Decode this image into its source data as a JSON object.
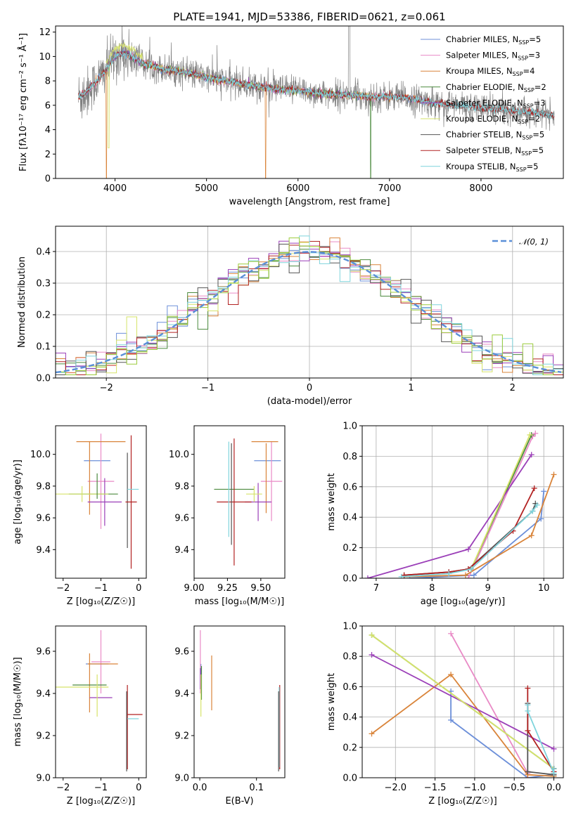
{
  "colors": {
    "chabrier_miles": "#6c8fd9",
    "salpeter_miles": "#e98ac6",
    "kroupa_miles": "#d9843a",
    "chabrier_elodie": "#4b8a3e",
    "salpeter_elodie": "#9b3fb8",
    "kroupa_elodie": "#d6e36a",
    "chabrier_stelib": "#555555",
    "salpeter_stelib": "#b22222",
    "kroupa_stelib": "#7fd4dc",
    "data": "#808080",
    "normal": "#5a8fd8",
    "green": "#9ccc3c"
  },
  "chart_data": [
    {
      "id": "spectrum",
      "type": "line",
      "title": "PLATE=1941, MJD=53386, FIBERID=0621, z=0.061",
      "xlabel": "wavelength [Angstrom, rest frame]",
      "ylabel": "Flux [fλ10⁻¹⁷ erg cm⁻² s⁻¹ Å⁻¹]",
      "xlim": [
        3350,
        8900
      ],
      "ylim": [
        0,
        12.5
      ],
      "xticks": [
        4000,
        5000,
        6000,
        7000,
        8000
      ],
      "yticks": [
        0,
        2,
        4,
        6,
        8,
        10,
        12
      ],
      "continuum": {
        "x": [
          3600,
          3700,
          3800,
          3900,
          3950,
          4000,
          4100,
          4200,
          4300,
          4400,
          4500,
          4700,
          5000,
          5200,
          5500,
          5800,
          6000,
          6300,
          6600,
          6800,
          7000,
          7200,
          7400,
          7500,
          7700,
          8000,
          8300,
          8600,
          8800
        ],
        "y": [
          6.6,
          7.2,
          8.0,
          8.9,
          9.5,
          10.0,
          10.3,
          9.9,
          9.4,
          9.3,
          9.0,
          8.8,
          8.3,
          8.0,
          7.6,
          7.3,
          7.2,
          6.9,
          6.8,
          6.7,
          6.7,
          6.6,
          6.3,
          6.2,
          6.0,
          5.8,
          5.6,
          5.4,
          5.2
        ]
      },
      "legend": [
        {
          "main": "Chabrier MILES, N",
          "sub": "SSP",
          "tail": "=5"
        },
        {
          "main": "Salpeter MILES, N",
          "sub": "SSP",
          "tail": "=3"
        },
        {
          "main": "Kroupa MILES, N",
          "sub": "SSP",
          "tail": "=4"
        },
        {
          "main": "Chabrier ELODIE, N",
          "sub": "SSP",
          "tail": "=2"
        },
        {
          "main": "Salpeter ELODIE, N",
          "sub": "SSP",
          "tail": "=3"
        },
        {
          "main": "Kroupa ELODIE, N",
          "sub": "SSP",
          "tail": "=2"
        },
        {
          "main": "Chabrier STELIB, N",
          "sub": "SSP",
          "tail": "=5"
        },
        {
          "main": "Salpeter STELIB, N",
          "sub": "SSP",
          "tail": "=5"
        },
        {
          "main": "Kroupa STELIB, N",
          "sub": "SSP",
          "tail": "=5"
        }
      ],
      "legend_placement": "upper-right"
    },
    {
      "id": "residuals",
      "type": "histogram",
      "xlabel": "(data-model)/error",
      "ylabel": "Normed distribution",
      "xlim": [
        -2.5,
        2.5
      ],
      "ylim": [
        0,
        0.48
      ],
      "xticks": [
        -2,
        -1,
        0,
        1,
        2
      ],
      "yticks": [
        0.0,
        0.1,
        0.2,
        0.3,
        0.4
      ],
      "bin_width": 0.1,
      "legend": "𝒩(0, 1)",
      "legend_placement": "upper-right",
      "grid": true
    },
    {
      "id": "age_vs_Z",
      "type": "errorbar",
      "xlabel": "Z [log₁₀(Z/Z☉)]",
      "ylabel": "age  [log₁₀(age/yr)]",
      "xlim": [
        -2.2,
        0.2
      ],
      "ylim": [
        9.22,
        10.18
      ],
      "xticks": [
        -2,
        -1,
        0
      ],
      "yticks": [
        9.4,
        9.6,
        9.8,
        10.0
      ],
      "points": [
        {
          "s": "chabrier_miles",
          "x": -1.1,
          "xe": 0.35,
          "y": 9.96,
          "ye": 0.0
        },
        {
          "s": "salpeter_miles",
          "x": -1.0,
          "xe": 0.35,
          "y": 9.83,
          "ye": 0.3
        },
        {
          "s": "kroupa_miles",
          "x": -1.0,
          "xe": 0.65,
          "y": 10.08,
          "ye": 0.0
        },
        {
          "s": "kroupa_miles",
          "x": -1.3,
          "xe": 0.0,
          "y": 9.85,
          "ye": 0.23
        },
        {
          "s": "chabrier_elodie",
          "x": -1.2,
          "xe": 0.65,
          "y": 9.75,
          "ye": 0.0
        },
        {
          "s": "salpeter_elodie",
          "x": -0.9,
          "xe": 0.45,
          "y": 9.7,
          "ye": 0.15
        },
        {
          "s": "kroupa_elodie",
          "x": -1.5,
          "xe": 0.7,
          "y": 9.75,
          "ye": 0.05
        },
        {
          "s": "chabrier_stelib",
          "x": -0.3,
          "xe": 0.0,
          "y": 9.71,
          "ye": 0.3
        },
        {
          "s": "salpeter_stelib",
          "x": -0.2,
          "xe": 0.15,
          "y": 9.7,
          "ye": 0.42
        },
        {
          "s": "kroupa_stelib",
          "x": -0.15,
          "xe": 0.15,
          "y": 9.78,
          "ye": 0.0
        },
        {
          "s": "chabrier_elodie",
          "x": -1.1,
          "xe": 0.0,
          "y": 9.8,
          "ye": 0.08
        }
      ]
    },
    {
      "id": "age_vs_mass",
      "type": "errorbar",
      "xlabel": "mass [log₁₀(M/M☉)]",
      "ylabel": "",
      "xlim": [
        9.0,
        9.68
      ],
      "ylim": [
        9.22,
        10.18
      ],
      "xticks": [
        9.0,
        9.25,
        9.5
      ],
      "xticklabels": [
        "9.00",
        "9.25",
        "9.50"
      ],
      "yticks": [
        9.4,
        9.6,
        9.8,
        10.0
      ],
      "points": [
        {
          "s": "chabrier_miles",
          "x": 9.55,
          "xe": 0.1,
          "y": 9.96,
          "ye": 0.0
        },
        {
          "s": "salpeter_miles",
          "x": 9.58,
          "xe": 0.08,
          "y": 9.83,
          "ye": 0.25
        },
        {
          "s": "kroupa_miles",
          "x": 9.53,
          "xe": 0.1,
          "y": 10.08,
          "ye": 0.0
        },
        {
          "s": "kroupa_miles",
          "x": 9.54,
          "xe": 0.0,
          "y": 9.85,
          "ye": 0.22
        },
        {
          "s": "chabrier_elodie",
          "x": 9.3,
          "xe": 0.15,
          "y": 9.78,
          "ye": 0.0
        },
        {
          "s": "salpeter_elodie",
          "x": 9.48,
          "xe": 0.1,
          "y": 9.7,
          "ye": 0.12
        },
        {
          "s": "kroupa_elodie",
          "x": 9.45,
          "xe": 0.06,
          "y": 9.75,
          "ye": 0.05
        },
        {
          "s": "salpeter_stelib",
          "x": 9.3,
          "xe": 0.13,
          "y": 9.7,
          "ye": 0.4
        },
        {
          "s": "kroupa_stelib",
          "x": 9.26,
          "xe": 0.0,
          "y": 9.78,
          "ye": 0.3
        },
        {
          "s": "chabrier_stelib",
          "x": 9.28,
          "xe": 0.0,
          "y": 9.75,
          "ye": 0.32
        }
      ]
    },
    {
      "id": "weight_vs_age",
      "type": "line",
      "xlabel": "age  [log₁₀(age/yr)]",
      "ylabel": "mass weight",
      "xlim": [
        6.75,
        10.35
      ],
      "ylim": [
        0,
        1.0
      ],
      "xticks": [
        7,
        8,
        9,
        10
      ],
      "yticks": [
        0.0,
        0.2,
        0.4,
        0.6,
        0.8,
        1.0
      ],
      "grid": true,
      "series": [
        {
          "s": "chabrier_miles",
          "x": [
            7.6,
            8.75,
            9.95,
            10.0
          ],
          "y": [
            0.0,
            0.02,
            0.39,
            0.57
          ]
        },
        {
          "s": "salpeter_miles",
          "x": [
            8.65,
            9.8,
            9.85
          ],
          "y": [
            0.0,
            0.93,
            0.95
          ]
        },
        {
          "s": "kroupa_miles",
          "x": [
            7.5,
            8.6,
            9.78,
            10.18
          ],
          "y": [
            0.01,
            0.02,
            0.28,
            0.68
          ]
        },
        {
          "s": "chabrier_elodie",
          "x": [
            8.7,
            9.78
          ],
          "y": [
            0.06,
            0.94
          ]
        },
        {
          "s": "salpeter_elodie",
          "x": [
            6.85,
            8.65,
            9.78
          ],
          "y": [
            0.0,
            0.19,
            0.81
          ]
        },
        {
          "s": "kroupa_elodie",
          "x": [
            8.7,
            9.75
          ],
          "y": [
            0.06,
            0.94
          ]
        },
        {
          "s": "chabrier_stelib",
          "x": [
            7.5,
            8.3,
            8.65,
            9.8,
            9.85
          ],
          "y": [
            0.02,
            0.04,
            0.06,
            0.44,
            0.49
          ]
        },
        {
          "s": "salpeter_stelib",
          "x": [
            7.5,
            8.3,
            8.65,
            9.45,
            9.83
          ],
          "y": [
            0.02,
            0.04,
            0.06,
            0.31,
            0.59
          ]
        },
        {
          "s": "kroupa_stelib",
          "x": [
            7.45,
            8.3,
            8.7,
            9.8,
            9.88
          ],
          "y": [
            0.01,
            0.03,
            0.06,
            0.44,
            0.48
          ]
        }
      ]
    },
    {
      "id": "mass_vs_Z",
      "type": "errorbar",
      "xlabel": "Z [log₁₀(Z/Z☉)]",
      "ylabel": "mass [log₁₀(M/M☉)]",
      "xlim": [
        -2.2,
        0.2
      ],
      "ylim": [
        9.0,
        9.72
      ],
      "xticks": [
        -2,
        -1,
        0
      ],
      "yticks": [
        9.0,
        9.2,
        9.4,
        9.6
      ],
      "points": [
        {
          "s": "chabrier_miles",
          "x": -1.1,
          "xe": 0.3,
          "y": 9.54,
          "ye": 0.0
        },
        {
          "s": "salpeter_miles",
          "x": -1.0,
          "xe": 0.25,
          "y": 9.55,
          "ye": 0.15
        },
        {
          "s": "kroupa_miles",
          "x": -0.95,
          "xe": 0.4,
          "y": 9.54,
          "ye": 0.0
        },
        {
          "s": "kroupa_miles",
          "x": -1.3,
          "xe": 0.0,
          "y": 9.45,
          "ye": 0.14
        },
        {
          "s": "chabrier_elodie",
          "x": -1.3,
          "xe": 0.45,
          "y": 9.44,
          "ye": 0.0
        },
        {
          "s": "salpeter_elodie",
          "x": -1.0,
          "xe": 0.3,
          "y": 9.38,
          "ye": 0.0
        },
        {
          "s": "kroupa_elodie",
          "x": -1.5,
          "xe": 0.7,
          "y": 9.43,
          "ye": 0.0
        },
        {
          "s": "kroupa_elodie",
          "x": -1.1,
          "xe": 0.0,
          "y": 9.39,
          "ye": 0.1
        },
        {
          "s": "salpeter_stelib",
          "x": -0.1,
          "xe": 0.2,
          "y": 9.3,
          "ye": 0.0
        },
        {
          "s": "salpeter_stelib",
          "x": -0.3,
          "xe": 0.0,
          "y": 9.24,
          "ye": 0.2
        },
        {
          "s": "kroupa_stelib",
          "x": -0.15,
          "xe": 0.15,
          "y": 9.28,
          "ye": 0.0
        },
        {
          "s": "chabrier_stelib",
          "x": -0.32,
          "xe": 0.0,
          "y": 9.22,
          "ye": 0.19
        }
      ]
    },
    {
      "id": "mass_vs_ebv",
      "type": "errorbar",
      "xlabel": "E(B-V)",
      "ylabel": "",
      "xlim": [
        -0.01,
        0.15
      ],
      "ylim": [
        9.0,
        9.72
      ],
      "xticks": [
        0.0,
        0.1
      ],
      "xticklabels": [
        "0.0",
        "0.1"
      ],
      "yticks": [
        9.0,
        9.2,
        9.4,
        9.6
      ],
      "points": [
        {
          "s": "chabrier_miles",
          "x": 0.002,
          "xe": 0.0,
          "y": 9.5,
          "ye": 0.04
        },
        {
          "s": "salpeter_miles",
          "x": 0.001,
          "xe": 0.0,
          "y": 9.55,
          "ye": 0.15
        },
        {
          "s": "kroupa_miles",
          "x": 0.021,
          "xe": 0.0,
          "y": 9.45,
          "ye": 0.13
        },
        {
          "s": "chabrier_elodie",
          "x": 0.003,
          "xe": 0.0,
          "y": 9.45,
          "ye": 0.08
        },
        {
          "s": "salpeter_elodie",
          "x": 0.001,
          "xe": 0.0,
          "y": 9.47,
          "ye": 0.05
        },
        {
          "s": "kroupa_elodie",
          "x": 0.002,
          "xe": 0.0,
          "y": 9.39,
          "ye": 0.1
        },
        {
          "s": "salpeter_stelib",
          "x": 0.141,
          "xe": 0.0,
          "y": 9.24,
          "ye": 0.2
        },
        {
          "s": "kroupa_stelib",
          "x": 0.14,
          "xe": 0.0,
          "y": 9.24,
          "ye": 0.19
        },
        {
          "s": "chabrier_stelib",
          "x": 0.139,
          "xe": 0.0,
          "y": 9.22,
          "ye": 0.19
        }
      ]
    },
    {
      "id": "weight_vs_Z",
      "type": "line",
      "xlabel": "Z [log₁₀(Z/Z☉)]",
      "ylabel": "mass weight",
      "xlim": [
        -2.42,
        0.12
      ],
      "ylim": [
        0,
        1.0
      ],
      "xticks": [
        -2.0,
        -1.5,
        -1.0,
        -0.5,
        0.0
      ],
      "xticklabels": [
        "−2.0",
        "−1.5",
        "−1.0",
        "−0.5",
        "0.0"
      ],
      "yticks": [
        0.0,
        0.2,
        0.4,
        0.6,
        0.8,
        1.0
      ],
      "grid": true,
      "series": [
        {
          "s": "chabrier_miles",
          "x": [
            -1.3,
            -1.3,
            -0.33,
            0.0
          ],
          "y": [
            0.57,
            0.38,
            0.0,
            0.02
          ]
        },
        {
          "s": "salpeter_miles",
          "x": [
            -1.3,
            -0.33,
            -0.33
          ],
          "y": [
            0.95,
            0.03,
            0.0
          ]
        },
        {
          "s": "kroupa_miles",
          "x": [
            -2.3,
            -1.3,
            -0.33,
            0.0
          ],
          "y": [
            0.29,
            0.68,
            0.02,
            0.01
          ]
        },
        {
          "s": "chabrier_elodie",
          "x": [
            -2.3,
            0.0
          ],
          "y": [
            0.94,
            0.06
          ]
        },
        {
          "s": "salpeter_elodie",
          "x": [
            -2.3,
            0.0
          ],
          "y": [
            0.81,
            0.19
          ]
        },
        {
          "s": "kroupa_elodie",
          "x": [
            -2.3,
            0.0
          ],
          "y": [
            0.94,
            0.06
          ]
        },
        {
          "s": "chabrier_stelib",
          "x": [
            -0.33,
            -0.33,
            0.0,
            0.0
          ],
          "y": [
            0.49,
            0.04,
            0.02,
            0.06
          ]
        },
        {
          "s": "salpeter_stelib",
          "x": [
            -0.33,
            -0.33,
            0.0,
            0.0
          ],
          "y": [
            0.59,
            0.31,
            0.04,
            0.06
          ]
        },
        {
          "s": "kroupa_stelib",
          "x": [
            -0.33,
            -0.33,
            0.0,
            0.0
          ],
          "y": [
            0.48,
            0.44,
            0.03,
            0.06
          ]
        }
      ]
    }
  ]
}
